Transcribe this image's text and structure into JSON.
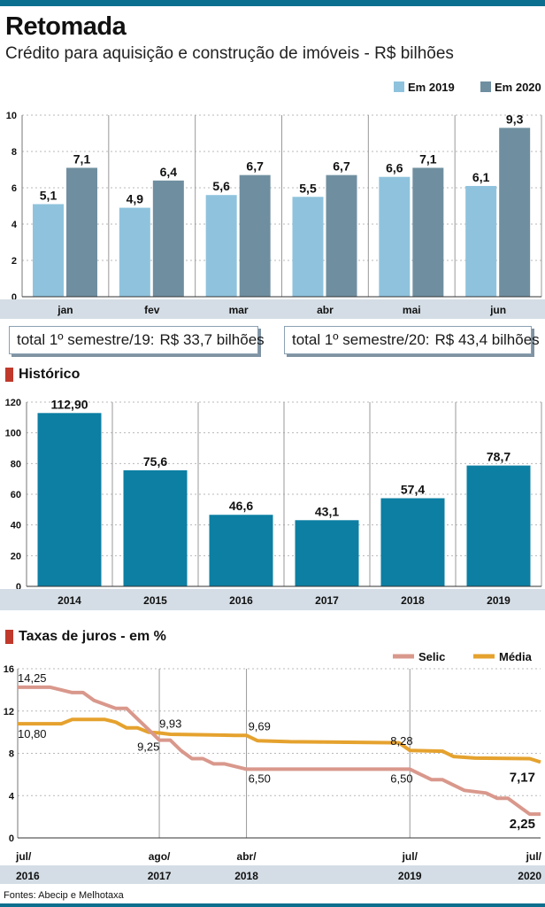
{
  "header": {
    "title": "Retomada",
    "subtitle": "Crédito para aquisição e construção de imóveis - R$ bilhões"
  },
  "totals": {
    "s2019_label": "total 1º semestre/19:",
    "s2019_value": "R$ 33,7 bilhões",
    "s2020_label": "total 1º semestre/20:",
    "s2020_value": "R$ 43,4 bilhões"
  },
  "sections": {
    "historico": "Histórico",
    "taxas": "Taxas de juros - em %"
  },
  "source": "Fontes: Abecip e Melhotaxa",
  "colors": {
    "series2019": "#8fc3dd",
    "series2020": "#6f8fa0",
    "historico": "#0c7fa3",
    "selic": "#d9988c",
    "media": "#e5a22e",
    "accent": "#c0392b",
    "band": "#d4dde5"
  },
  "chart_data": [
    {
      "type": "bar",
      "title": "Retomada",
      "categories": [
        "jan",
        "fev",
        "mar",
        "abr",
        "mai",
        "jun"
      ],
      "series": [
        {
          "name": "Em 2019",
          "values": [
            5.1,
            4.9,
            5.6,
            5.5,
            6.6,
            6.1
          ],
          "labels": [
            "5,1",
            "4,9",
            "5,6",
            "5,5",
            "6,6",
            "6,1"
          ]
        },
        {
          "name": "Em 2020",
          "values": [
            7.1,
            6.4,
            6.7,
            6.7,
            7.1,
            9.3
          ],
          "labels": [
            "7,1",
            "6,4",
            "6,7",
            "6,7",
            "7,1",
            "9,3"
          ]
        }
      ],
      "ylim": [
        0,
        10
      ],
      "yticks": [
        "0",
        "2",
        "4",
        "6",
        "8",
        "10"
      ],
      "legend": "top-right",
      "grid": true
    },
    {
      "type": "bar",
      "title": "Histórico",
      "categories": [
        "2014",
        "2015",
        "2016",
        "2017",
        "2018",
        "2019"
      ],
      "values": [
        112.9,
        75.6,
        46.6,
        43.1,
        57.4,
        78.7
      ],
      "labels": [
        "112,90",
        "75,6",
        "46,6",
        "43,1",
        "57,4",
        "78,7"
      ],
      "ylim": [
        0,
        120
      ],
      "yticks": [
        "0",
        "20",
        "40",
        "60",
        "80",
        "100",
        "120"
      ],
      "grid": true
    },
    {
      "type": "line",
      "title": "Taxas de juros - em %",
      "x_domain": [
        "2016-07",
        "2020-07"
      ],
      "ylim": [
        0,
        16
      ],
      "yticks": [
        "0",
        "4",
        "8",
        "12",
        "16"
      ],
      "xticks": [
        {
          "date": "2016-07",
          "top": "jul/",
          "bottom": "2016"
        },
        {
          "date": "2017-08",
          "top": "ago/",
          "bottom": "2017"
        },
        {
          "date": "2018-04",
          "top": "abr/",
          "bottom": "2018"
        },
        {
          "date": "2019-07",
          "top": "jul/",
          "bottom": "2019"
        },
        {
          "date": "2020-07",
          "top": "jul/",
          "bottom": "2020"
        }
      ],
      "legend": "top-right",
      "grid": true,
      "series": [
        {
          "name": "Selic",
          "points": [
            [
              "2016-07",
              14.25
            ],
            [
              "2016-10",
              14.25
            ],
            [
              "2016-11",
              14.0
            ],
            [
              "2016-12",
              13.75
            ],
            [
              "2017-01",
              13.75
            ],
            [
              "2017-02",
              13.0
            ],
            [
              "2017-04",
              12.25
            ],
            [
              "2017-05",
              12.25
            ],
            [
              "2017-06",
              11.25
            ],
            [
              "2017-07",
              10.25
            ],
            [
              "2017-08",
              9.25
            ],
            [
              "2017-09",
              9.25
            ],
            [
              "2017-10",
              8.25
            ],
            [
              "2017-11",
              7.5
            ],
            [
              "2017-12",
              7.5
            ],
            [
              "2018-01",
              7.0
            ],
            [
              "2018-02",
              7.0
            ],
            [
              "2018-03",
              6.75
            ],
            [
              "2018-04",
              6.5
            ],
            [
              "2019-07",
              6.5
            ],
            [
              "2019-08",
              6.0
            ],
            [
              "2019-09",
              5.5
            ],
            [
              "2019-10",
              5.5
            ],
            [
              "2019-11",
              5.0
            ],
            [
              "2019-12",
              4.5
            ],
            [
              "2020-02",
              4.25
            ],
            [
              "2020-03",
              3.75
            ],
            [
              "2020-04",
              3.75
            ],
            [
              "2020-05",
              3.0
            ],
            [
              "2020-06",
              2.25
            ],
            [
              "2020-07",
              2.25
            ]
          ]
        },
        {
          "name": "Média",
          "points": [
            [
              "2016-07",
              10.8
            ],
            [
              "2016-11",
              10.8
            ],
            [
              "2016-12",
              11.2
            ],
            [
              "2017-03",
              11.2
            ],
            [
              "2017-04",
              10.95
            ],
            [
              "2017-05",
              10.4
            ],
            [
              "2017-06",
              10.4
            ],
            [
              "2017-07",
              10.0
            ],
            [
              "2017-08",
              9.93
            ],
            [
              "2017-09",
              9.8
            ],
            [
              "2018-03",
              9.7
            ],
            [
              "2018-04",
              9.69
            ],
            [
              "2018-05",
              9.2
            ],
            [
              "2018-08",
              9.1
            ],
            [
              "2019-06",
              9.0
            ],
            [
              "2019-07",
              8.28
            ],
            [
              "2019-10",
              8.2
            ],
            [
              "2019-11",
              7.7
            ],
            [
              "2020-01",
              7.55
            ],
            [
              "2020-06",
              7.5
            ],
            [
              "2020-07",
              7.17
            ]
          ]
        }
      ],
      "annotations": [
        {
          "text": "14,25",
          "date": "2016-07",
          "value": 14.25
        },
        {
          "text": "10,80",
          "date": "2016-07",
          "value": 10.8
        },
        {
          "text": "9,93",
          "date": "2017-08",
          "value": 9.93
        },
        {
          "text": "9,25",
          "date": "2017-08",
          "value": 9.25
        },
        {
          "text": "9,69",
          "date": "2018-04",
          "value": 9.69
        },
        {
          "text": "6,50",
          "date": "2018-04",
          "value": 6.5
        },
        {
          "text": "8,28",
          "date": "2019-07",
          "value": 8.28
        },
        {
          "text": "6,50",
          "date": "2019-07",
          "value": 6.5
        },
        {
          "text": "7,17",
          "date": "2020-07",
          "value": 7.17
        },
        {
          "text": "2,25",
          "date": "2020-07",
          "value": 2.25
        }
      ]
    }
  ]
}
